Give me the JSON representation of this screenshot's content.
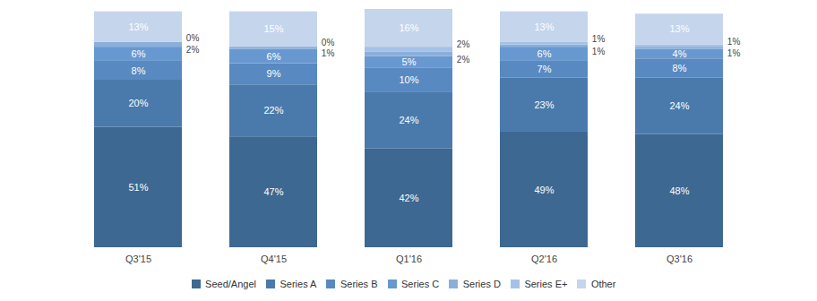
{
  "chart_data": {
    "type": "bar",
    "stacked": true,
    "data_labels": true,
    "tick_labels": "x",
    "legend": "bottom",
    "categories": [
      "Q3'15",
      "Q4'15",
      "Q1'16",
      "Q2'16",
      "Q3'16"
    ],
    "ylim": [
      0,
      101
    ],
    "series": [
      {
        "name": "Seed/Angel",
        "color": "#3d6891",
        "values": [
          51,
          47,
          42,
          49,
          48
        ],
        "value_labels": [
          "51%",
          "47%",
          "42%",
          "49%",
          "48%"
        ]
      },
      {
        "name": "Series A",
        "color": "#4a7aab",
        "values": [
          20,
          22,
          24,
          23,
          24
        ],
        "value_labels": [
          "20%",
          "22%",
          "24%",
          "23%",
          "24%"
        ]
      },
      {
        "name": "Series B",
        "color": "#5889c0",
        "values": [
          8,
          9,
          10,
          7,
          8
        ],
        "value_labels": [
          "8%",
          "9%",
          "10%",
          "7%",
          "8%"
        ]
      },
      {
        "name": "Series C",
        "color": "#6898d0",
        "values": [
          6,
          6,
          5,
          6,
          4
        ],
        "value_labels": [
          "6%",
          "6%",
          "5%",
          "6%",
          "4%"
        ]
      },
      {
        "name": "Series D",
        "color": "#8aafdb",
        "values": [
          2,
          1,
          2,
          1,
          1
        ],
        "value_labels": [
          "2%",
          "1%",
          "2%",
          "1%",
          "1%"
        ]
      },
      {
        "name": "Series E+",
        "color": "#a6c1e5",
        "values": [
          0,
          0,
          2,
          1,
          1
        ],
        "value_labels": [
          "0%",
          "0%",
          "2%",
          "1%",
          "1%"
        ]
      },
      {
        "name": "Other",
        "color": "#c5d5ec",
        "values": [
          13,
          15,
          16,
          13,
          13
        ],
        "value_labels": [
          "13%",
          "15%",
          "16%",
          "13%",
          "13%"
        ]
      }
    ]
  }
}
